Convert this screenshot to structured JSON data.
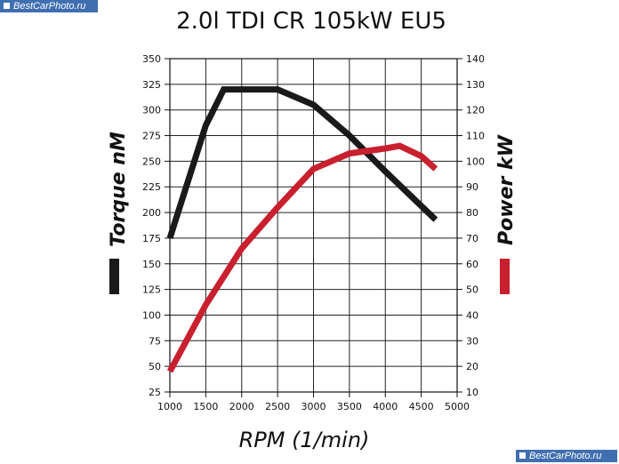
{
  "watermark_top": "BestCarPhoto.ru",
  "watermark_bottom": "BestCarPhoto.ru",
  "chart_data": {
    "type": "line",
    "title": "2.0l TDI CR 105kW EU5",
    "xlabel": "RPM (1/min)",
    "ylabel_left": "Torque nM",
    "ylabel_right": "Power kW",
    "xlim": [
      1000,
      5000
    ],
    "ylim_left": [
      25,
      350
    ],
    "ylim_right": [
      10,
      140
    ],
    "x_ticks": [
      1000,
      1500,
      2000,
      2500,
      3000,
      3500,
      4000,
      4500,
      5000
    ],
    "y_left_ticks": [
      25,
      50,
      75,
      100,
      125,
      150,
      175,
      200,
      225,
      250,
      275,
      300,
      325,
      350
    ],
    "y_right_ticks": [
      10,
      20,
      30,
      40,
      50,
      60,
      70,
      80,
      90,
      100,
      110,
      120,
      130,
      140
    ],
    "grid": true,
    "series": [
      {
        "name": "Torque nM",
        "axis": "left",
        "color": "#1a1a1a",
        "x": [
          1000,
          1500,
          1750,
          2500,
          3000,
          3500,
          4000,
          4700
        ],
        "values": [
          175,
          285,
          320,
          320,
          305,
          275,
          240,
          193
        ]
      },
      {
        "name": "Power kW",
        "axis": "right",
        "color": "#c8202f",
        "x": [
          1000,
          1500,
          2000,
          2500,
          3000,
          3500,
          4000,
          4200,
          4500,
          4700
        ],
        "values": [
          18,
          44,
          66,
          82,
          97,
          103,
          105,
          106,
          102,
          97
        ]
      }
    ]
  }
}
